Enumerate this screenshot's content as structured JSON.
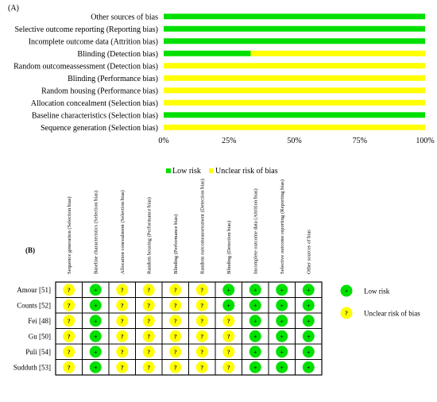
{
  "chart_data": [
    {
      "type": "bar",
      "panel_label": "(A)",
      "orientation": "horizontal",
      "stacked": true,
      "categories": [
        "Other sources of bias",
        "Selective outcome reporting (Reporting bias)",
        "Incomplete outcome data (Attrition bias)",
        "Blinding (Detection bias)",
        "Random outcomeassessment (Detection bias)",
        "Blinding (Performance bias)",
        "Random housing (Performance bias)",
        "Allocation concealment (Selection bias)",
        "Baseline characteristics (Selection bias)",
        "Sequence generation (Selection bias)"
      ],
      "series": [
        {
          "name": "Low risk",
          "color": "#00e000",
          "values": [
            100,
            100,
            100,
            33.3,
            0,
            0,
            0,
            0,
            100,
            0
          ]
        },
        {
          "name": "Unclear risk of bias",
          "color": "#ffff00",
          "values": [
            0,
            0,
            0,
            66.7,
            100,
            100,
            100,
            100,
            0,
            100
          ]
        }
      ],
      "xlim": [
        0,
        100
      ],
      "xticks": [
        "0%",
        "25%",
        "50%",
        "75%",
        "100%"
      ],
      "legend_position": "bottom-center",
      "grid": false
    },
    {
      "type": "table",
      "panel_label": "(B)",
      "columns": [
        "Sequence generation (Selection bias)",
        "Baseline characteristics (Selection bias)",
        "Allocation concealment (Selection bias)",
        "Random housing (Performance bias)",
        "Blinding (Performance bias)",
        "Random outcomeassessment (Detection bias)",
        "Blinding (Detection bias)",
        "Incomplete outcome data (Attrition bias)",
        "Selective outcome reporting (Reporting bias)",
        "Other sources of bias"
      ],
      "rows": [
        {
          "study": "Amour [51]",
          "cells": [
            "?",
            "+",
            "?",
            "?",
            "?",
            "?",
            "+",
            "+",
            "+",
            "+"
          ]
        },
        {
          "study": "Counts [52]",
          "cells": [
            "?",
            "+",
            "?",
            "?",
            "?",
            "?",
            "+",
            "+",
            "+",
            "+"
          ]
        },
        {
          "study": "Fei [48]",
          "cells": [
            "?",
            "+",
            "?",
            "?",
            "?",
            "?",
            "?",
            "+",
            "+",
            "+"
          ]
        },
        {
          "study": "Gu [50]",
          "cells": [
            "?",
            "+",
            "?",
            "?",
            "?",
            "?",
            "?",
            "+",
            "+",
            "+"
          ]
        },
        {
          "study": "Puli [54]",
          "cells": [
            "?",
            "+",
            "?",
            "?",
            "?",
            "?",
            "?",
            "+",
            "+",
            "+"
          ]
        },
        {
          "study": "Sudduth [53]",
          "cells": [
            "?",
            "+",
            "?",
            "?",
            "?",
            "?",
            "?",
            "+",
            "+",
            "+"
          ]
        }
      ],
      "legend": [
        {
          "symbol": "+",
          "label": "Low risk",
          "color": "#00e000"
        },
        {
          "symbol": "?",
          "label": "Unclear risk of bias",
          "color": "#ffff00"
        }
      ]
    }
  ]
}
